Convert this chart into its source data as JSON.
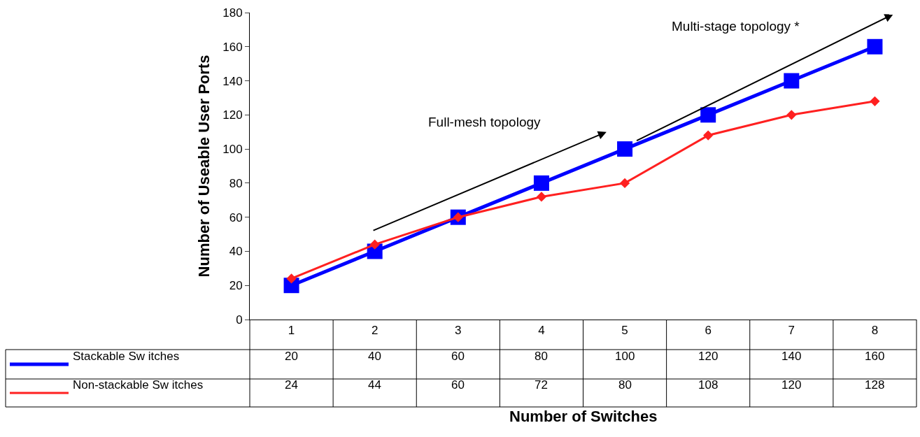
{
  "chart_data": {
    "type": "line",
    "xlabel": "Number of Switches",
    "ylabel": "Number of Useable User Ports",
    "categories": [
      "1",
      "2",
      "3",
      "4",
      "5",
      "6",
      "7",
      "8"
    ],
    "series": [
      {
        "name": "Stackable Sw itches",
        "color": "#0000ff",
        "marker": "square",
        "values": [
          20,
          40,
          60,
          80,
          100,
          120,
          140,
          160
        ]
      },
      {
        "name": "Non-stackable Sw itches",
        "color": "#ff2020",
        "marker": "diamond",
        "values": [
          24,
          44,
          60,
          72,
          80,
          108,
          120,
          128
        ]
      }
    ],
    "ylim": [
      0,
      180
    ],
    "yticks": [
      0,
      20,
      40,
      60,
      80,
      100,
      120,
      140,
      160,
      180
    ],
    "legend": "bottom left",
    "data_labels": true,
    "annotations": [
      "Full-mesh topology",
      "Multi-stage topology *"
    ]
  }
}
